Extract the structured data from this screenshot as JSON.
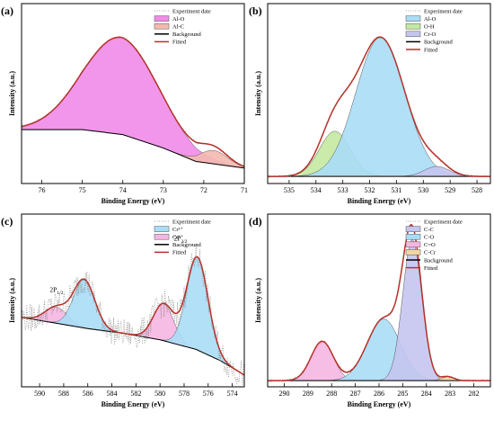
{
  "chart_data": [
    {
      "label": "(a)",
      "type": "line",
      "xlabel": "Binding Energy (eV)",
      "ylabel": "Intensity (a.u.)",
      "xlim": [
        76.5,
        71.0
      ],
      "x_reversed": true,
      "x_ticks": [
        "76",
        "75",
        "74",
        "73",
        "72",
        "71"
      ],
      "x_tick_values": [
        76,
        75,
        74,
        73,
        72,
        71
      ],
      "ylim": [
        0,
        1.0
      ],
      "legend": [
        {
          "label": "Experiment date",
          "style": "dotted"
        },
        {
          "label": "Al-O",
          "style": "patch",
          "color": "#f08be8"
        },
        {
          "label": "Al-C",
          "style": "patch",
          "color": "#f3b9b0"
        },
        {
          "label": "Background",
          "style": "line",
          "color": "#000000"
        },
        {
          "label": "Fitted",
          "style": "line",
          "color": "#b5312a"
        }
      ],
      "background": {
        "type": "poly",
        "points": [
          [
            76.5,
            0.29
          ],
          [
            75.0,
            0.29
          ],
          [
            74.0,
            0.26
          ],
          [
            73.0,
            0.18
          ],
          [
            72.2,
            0.1
          ],
          [
            71.0,
            0.06
          ]
        ]
      },
      "components": [
        {
          "name": "Al-O",
          "center": 74.05,
          "height": 0.58,
          "fwhm": 2.2,
          "fill": "#f08be8"
        },
        {
          "name": "Al-C",
          "center": 71.75,
          "height": 0.08,
          "fwhm": 0.8,
          "fill": "#f3b9b0"
        }
      ],
      "annotations": []
    },
    {
      "label": "(b)",
      "type": "line",
      "xlabel": "Binding Energy (eV)",
      "ylabel": "Intensity (a.u.)",
      "xlim": [
        535.8,
        527.5
      ],
      "x_reversed": true,
      "x_ticks": [
        "535",
        "534",
        "533",
        "532",
        "531",
        "530",
        "529",
        "528"
      ],
      "x_tick_values": [
        535,
        534,
        533,
        532,
        531,
        530,
        529,
        528
      ],
      "ylim": [
        0,
        1.0
      ],
      "legend": [
        {
          "label": "Experiment date",
          "style": "dotted"
        },
        {
          "label": "Al-O",
          "style": "patch",
          "color": "#a9ddf6"
        },
        {
          "label": "O-H",
          "style": "patch",
          "color": "#c4e9a0"
        },
        {
          "label": "Cr-O",
          "style": "patch",
          "color": "#c5c5f0"
        },
        {
          "label": "Background",
          "style": "line",
          "color": "#000000"
        },
        {
          "label": "Fitted",
          "style": "line",
          "color": "#b5312a"
        }
      ],
      "background": {
        "type": "poly",
        "points": [
          [
            535.8,
            0.01
          ],
          [
            527.5,
            0.01
          ]
        ]
      },
      "components": [
        {
          "name": "O-H",
          "center": 533.3,
          "height": 0.27,
          "fwhm": 1.35,
          "fill": "#c4e9a0"
        },
        {
          "name": "Al-O",
          "center": 531.6,
          "height": 0.83,
          "fwhm": 2.15,
          "fill": "#a9ddf6"
        },
        {
          "name": "Cr-O",
          "center": 529.5,
          "height": 0.06,
          "fwhm": 1.1,
          "fill": "#c5c5f0"
        }
      ],
      "annotations": []
    },
    {
      "label": "(c)",
      "type": "line",
      "xlabel": "Binding Energy (eV)",
      "ylabel": "Intensity (a.u.)",
      "xlim": [
        591.5,
        573.0
      ],
      "x_reversed": true,
      "x_ticks": [
        "590",
        "588",
        "586",
        "584",
        "582",
        "580",
        "578",
        "576",
        "574"
      ],
      "x_tick_values": [
        590,
        588,
        586,
        584,
        582,
        580,
        578,
        576,
        574
      ],
      "ylim": [
        0,
        1.0
      ],
      "legend": [
        {
          "label": "Experiment date",
          "style": "dotted"
        },
        {
          "label": "Cr³⁺",
          "style": "patch",
          "color": "#a9ddf6"
        },
        {
          "label": "Cr⁶⁺",
          "style": "patch",
          "color": "#f5b6e2"
        },
        {
          "label": "Background",
          "style": "line",
          "color": "#000000"
        },
        {
          "label": "Fitted",
          "style": "line",
          "color": "#b5312a"
        }
      ],
      "background": {
        "type": "poly",
        "points": [
          [
            591.5,
            0.4
          ],
          [
            586.0,
            0.33
          ],
          [
            583.0,
            0.3
          ],
          [
            580.0,
            0.26
          ],
          [
            577.0,
            0.2
          ],
          [
            575.0,
            0.13
          ],
          [
            573.0,
            0.04
          ]
        ]
      },
      "components": [
        {
          "name": "Cr⁶⁺",
          "center": 588.6,
          "height": 0.1,
          "fwhm": 2.2,
          "fill": "#f5b6e2"
        },
        {
          "name": "Cr³⁺",
          "center": 586.3,
          "height": 0.3,
          "fwhm": 2.1,
          "fill": "#a9ddf6"
        },
        {
          "name": "Cr⁶⁺",
          "center": 579.7,
          "height": 0.23,
          "fwhm": 2.0,
          "fill": "#f5b6e2"
        },
        {
          "name": "Cr³⁺",
          "center": 576.9,
          "height": 0.58,
          "fwhm": 2.1,
          "fill": "#a9ddf6"
        }
      ],
      "noisy_experiment": true,
      "annotations": [
        {
          "text": "2P",
          "sub": "1/2",
          "x": 588.6,
          "y": 0.56
        },
        {
          "text": "2P",
          "sub": "3/2",
          "x": 578.3,
          "y": 0.88
        }
      ]
    },
    {
      "label": "(d)",
      "type": "line",
      "xlabel": "Binding Energy (eV)",
      "ylabel": "Intensity (a.u.)",
      "xlim": [
        290.7,
        281.3
      ],
      "x_reversed": true,
      "x_ticks": [
        "290",
        "289",
        "288",
        "287",
        "286",
        "285",
        "284",
        "283",
        "282"
      ],
      "x_tick_values": [
        290,
        289,
        288,
        287,
        286,
        285,
        284,
        283,
        282
      ],
      "ylim": [
        0,
        1.0
      ],
      "legend": [
        {
          "label": "Experiment date",
          "style": "dotted"
        },
        {
          "label": "C-C",
          "style": "patch",
          "color": "#c5c5f0"
        },
        {
          "label": "C-O",
          "style": "patch",
          "color": "#a9ddf6"
        },
        {
          "label": "C=O",
          "style": "patch",
          "color": "#f5b6e2"
        },
        {
          "label": "C-Cr",
          "style": "patch",
          "color": "#f3d6a0"
        },
        {
          "label": "Background",
          "style": "line",
          "color": "#000000"
        },
        {
          "label": "Fitted",
          "style": "line",
          "color": "#b5312a"
        }
      ],
      "background": {
        "type": "poly",
        "points": [
          [
            290.7,
            0.005
          ],
          [
            281.3,
            0.005
          ]
        ]
      },
      "components": [
        {
          "name": "C=O",
          "center": 288.4,
          "height": 0.245,
          "fwhm": 1.1,
          "fill": "#f5b6e2"
        },
        {
          "name": "C-O",
          "center": 285.8,
          "height": 0.385,
          "fwhm": 1.65,
          "fill": "#a9ddf6"
        },
        {
          "name": "C-C",
          "center": 284.6,
          "height": 0.88,
          "fwhm": 0.95,
          "fill": "#c5c5f0"
        },
        {
          "name": "C-Cr",
          "center": 283.1,
          "height": 0.025,
          "fwhm": 0.6,
          "fill": "#f3d6a0"
        }
      ],
      "annotations": []
    }
  ]
}
